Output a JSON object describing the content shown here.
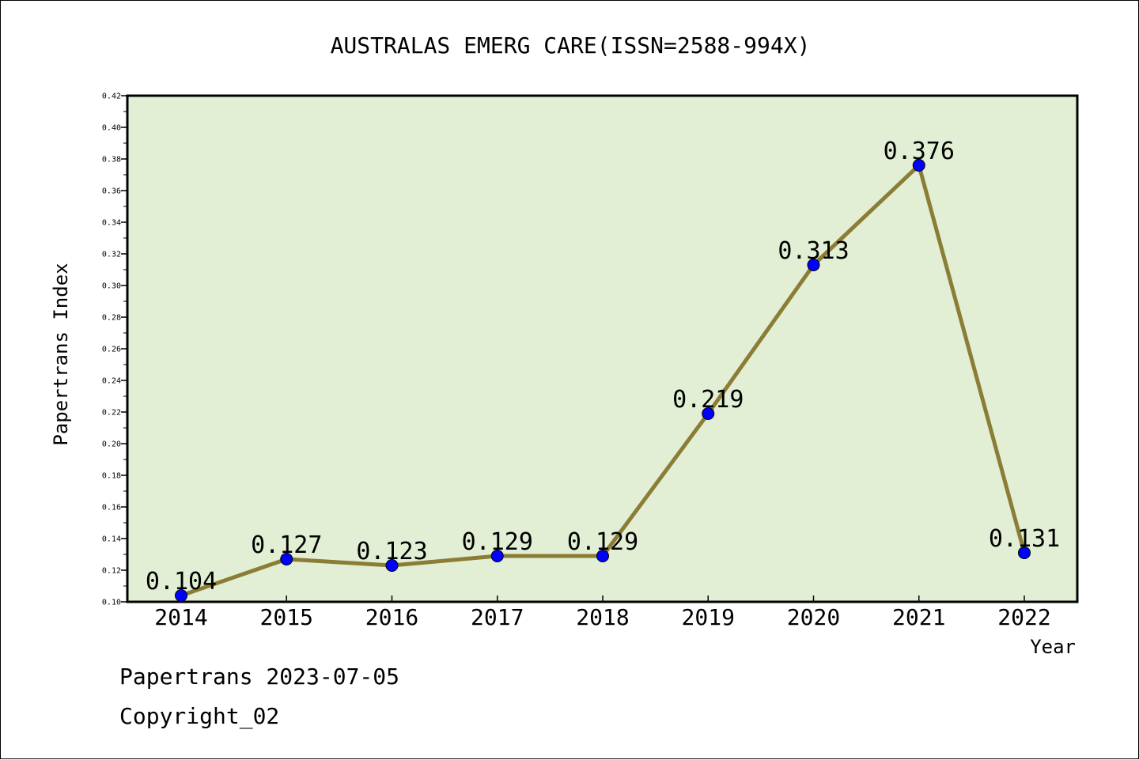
{
  "chart_data": {
    "type": "line",
    "title": "AUSTRALAS EMERG CARE(ISSN=2588-994X)",
    "xlabel": "Year",
    "ylabel": "Papertrans Index",
    "categories": [
      "2014",
      "2015",
      "2016",
      "2017",
      "2018",
      "2019",
      "2020",
      "2021",
      "2022"
    ],
    "values": [
      0.104,
      0.127,
      0.123,
      0.129,
      0.129,
      0.219,
      0.313,
      0.376,
      0.131
    ],
    "data_labels": [
      "0.104",
      "0.127",
      "0.123",
      "0.129",
      "0.129",
      "0.219",
      "0.313",
      "0.376",
      "0.131"
    ],
    "ylim": [
      0.1,
      0.42
    ],
    "yticks": [
      "0.10",
      "0.12",
      "0.14",
      "0.16",
      "0.18",
      "0.20",
      "0.22",
      "0.24",
      "0.26",
      "0.28",
      "0.30",
      "0.32",
      "0.34",
      "0.36",
      "0.38",
      "0.40",
      "0.42"
    ],
    "line_color": "#8b7d35",
    "marker_color": "#0000ff",
    "plot_background": "#e2efd4",
    "grid": false,
    "legend": "none"
  },
  "footer": {
    "line1": "Papertrans 2023-07-05",
    "line2": "Copyright_02"
  }
}
